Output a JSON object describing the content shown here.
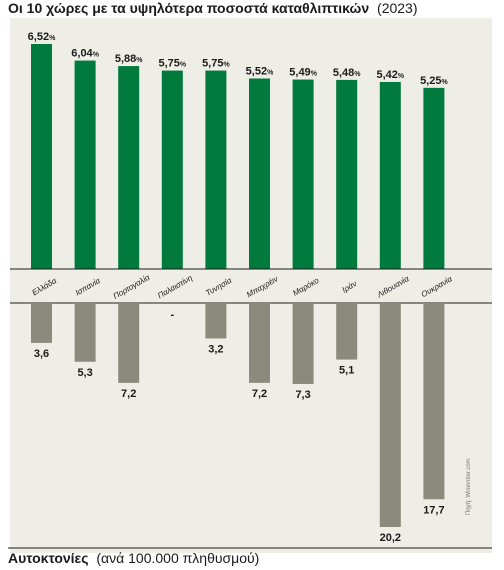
{
  "chart_data": [
    {
      "type": "bar",
      "title": "Οι 10 χώρες με τα υψηλότερα ποσοστά καταθλιπτικών",
      "title_suffix": "(2023)",
      "categories": [
        "Ελλάδα",
        "Ισπανία",
        "Πορτογαλία",
        "Παλαιστίνη",
        "Τυνησία",
        "Μπαχρέιν",
        "Μαρόκο",
        "Ιράν",
        "Λιθουανία",
        "Ουκρανία"
      ],
      "values": [
        6.52,
        6.04,
        5.88,
        5.75,
        5.75,
        5.52,
        5.49,
        5.48,
        5.42,
        5.25
      ],
      "value_labels": [
        "6,52",
        "6,04",
        "5,88",
        "5,75",
        "5,75",
        "5,52",
        "5,49",
        "5,48",
        "5,42",
        "5,25"
      ],
      "unit": "%",
      "color": "#007a3d",
      "grid": false
    },
    {
      "type": "bar",
      "title": "Αυτοκτονίες",
      "title_suffix": "(ανά 100.000 πληθυσμού)",
      "categories": [
        "Ελλάδα",
        "Ισπανία",
        "Πορτογαλία",
        "Παλαιστίνη",
        "Τυνησία",
        "Μπαχρέιν",
        "Μαρόκο",
        "Ιράν",
        "Λιθουανία",
        "Ουκρανία"
      ],
      "values": [
        3.6,
        5.3,
        7.2,
        null,
        3.2,
        7.2,
        7.3,
        5.1,
        20.2,
        17.7
      ],
      "value_labels": [
        "3,6",
        "5,3",
        "7,2",
        "-",
        "3,2",
        "7,2",
        "7,3",
        "5,1",
        "20,2",
        "17,7"
      ],
      "color": "#8a8b7c",
      "direction": "down",
      "grid": false
    }
  ],
  "colors": {
    "panel_background": "#eeeee6",
    "positive_bar": "#007a3d",
    "negative_bar": "#8a8b7c",
    "text": "#1a1a1a"
  },
  "credit": "Πηγή: Wisevoter.com"
}
